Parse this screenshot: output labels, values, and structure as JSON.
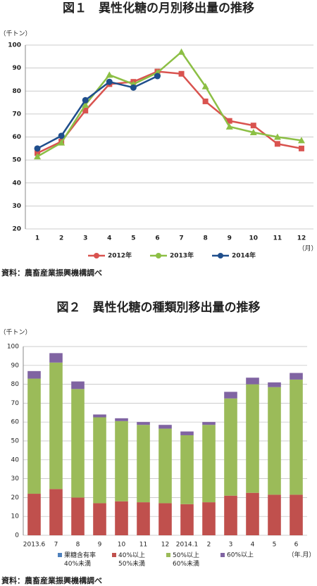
{
  "chart_data": [
    {
      "type": "line",
      "title": "図１　異性化糖の月別移出量の推移",
      "y_label": "（千トン）",
      "x_label": "（月）",
      "categories": [
        "1",
        "2",
        "3",
        "4",
        "5",
        "6",
        "7",
        "8",
        "9",
        "10",
        "11",
        "12"
      ],
      "series": [
        {
          "name": "2012年",
          "color": "#d9534f",
          "marker": "square",
          "values": [
            53,
            58,
            71.5,
            83,
            84,
            88.5,
            87.5,
            75.5,
            67,
            65,
            57,
            55
          ]
        },
        {
          "name": "2013年",
          "color": "#8cbf45",
          "marker": "triangle",
          "values": [
            51.5,
            57.5,
            74,
            87,
            83,
            88,
            97,
            82,
            64.5,
            62,
            60,
            58.5
          ]
        },
        {
          "name": "2014年",
          "color": "#1f4e8c",
          "marker": "circle",
          "values": [
            55,
            60.5,
            76,
            84,
            81.5,
            86.5,
            null,
            null,
            null,
            null,
            null,
            null
          ]
        }
      ],
      "ylim": [
        20,
        100
      ],
      "yticks": [
        20,
        30,
        40,
        50,
        60,
        70,
        80,
        90,
        100
      ],
      "grid": true,
      "source": "資料：農畜産業振興機構調べ"
    },
    {
      "type": "stacked_bar",
      "title": "図２　異性化糖の種類別移出量の推移",
      "y_label": "（千トン）",
      "x_label": "（年.月）",
      "categories": [
        "2013.6",
        "7",
        "8",
        "9",
        "10",
        "11",
        "12",
        "2014.1",
        "2",
        "3",
        "4",
        "5",
        "6"
      ],
      "series": [
        {
          "name": "果糖含有率\n40%未満",
          "color": "#4f81bd",
          "values": [
            0,
            0,
            0,
            0,
            0,
            0,
            0,
            0,
            0,
            0,
            0,
            0,
            0
          ]
        },
        {
          "name": "40%以上\n50%未満",
          "color": "#c0504d",
          "values": [
            22,
            24.5,
            20,
            17,
            18,
            17.5,
            17,
            16.5,
            17.5,
            21,
            22.5,
            21.5,
            21.5
          ]
        },
        {
          "name": "50%以上\n60%未満",
          "color": "#9bbb59",
          "values": [
            61,
            67,
            57.5,
            45.5,
            42.5,
            41,
            39.5,
            36.5,
            41,
            51.5,
            57.5,
            57,
            61
          ]
        },
        {
          "name": "60%以上",
          "color": "#8064a2",
          "values": [
            4,
            5,
            4,
            1.5,
            1.5,
            1.5,
            2,
            2,
            1.5,
            3.5,
            3.5,
            2.5,
            3.5
          ]
        }
      ],
      "ylim": [
        0,
        100
      ],
      "yticks": [
        0,
        10,
        20,
        30,
        40,
        50,
        60,
        70,
        80,
        90,
        100
      ],
      "grid": true,
      "source": "資料：農畜産業振興機構調べ"
    }
  ]
}
